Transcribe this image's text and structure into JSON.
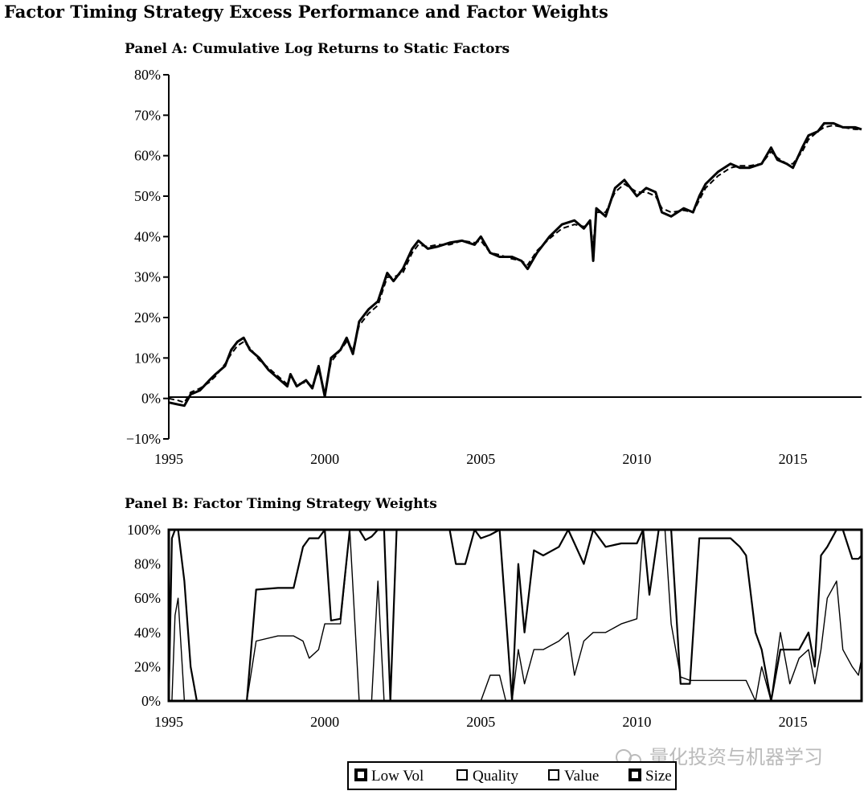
{
  "title": "Factor Timing Strategy Excess Performance and Factor Weights",
  "watermark": "量化投资与机器学习",
  "chart_data": [
    {
      "type": "line",
      "title": "Panel A: Cumulative Log Returns to Static Factors",
      "xlim": [
        1995,
        2017.2
      ],
      "ylim": [
        -10,
        80
      ],
      "x_ticks": [
        "1995",
        "2000",
        "2005",
        "2010",
        "2015"
      ],
      "y_ticks": [
        "80%",
        "70%",
        "60%",
        "50%",
        "40%",
        "30%",
        "20%",
        "10%",
        "0%",
        "−10%"
      ],
      "grid": false,
      "zero_line": true,
      "series": [
        {
          "style": "solid",
          "x": [
            1995.0,
            1995.3,
            1995.5,
            1995.7,
            1996.0,
            1996.3,
            1996.5,
            1996.8,
            1997.0,
            1997.2,
            1997.4,
            1997.6,
            1997.9,
            1998.2,
            1998.5,
            1998.8,
            1998.9,
            1999.1,
            1999.4,
            1999.6,
            1999.8,
            2000.0,
            2000.2,
            2000.5,
            2000.7,
            2000.9,
            2001.1,
            2001.4,
            2001.7,
            2002.0,
            2002.2,
            2002.5,
            2002.8,
            2003.0,
            2003.3,
            2003.6,
            2004.0,
            2004.4,
            2004.8,
            2005.0,
            2005.3,
            2005.6,
            2006.0,
            2006.3,
            2006.5,
            2006.8,
            2007.2,
            2007.6,
            2008.0,
            2008.3,
            2008.5,
            2008.6,
            2008.7,
            2009.0,
            2009.3,
            2009.6,
            2010.0,
            2010.3,
            2010.6,
            2010.8,
            2011.1,
            2011.5,
            2011.8,
            2012.0,
            2012.2,
            2012.6,
            2013.0,
            2013.3,
            2013.6,
            2014.0,
            2014.3,
            2014.5,
            2014.8,
            2015.0,
            2015.3,
            2015.5,
            2015.8,
            2016.0,
            2016.3,
            2016.6,
            2017.0,
            2017.2
          ],
          "values": [
            -1,
            -1.5,
            -1.8,
            1,
            2,
            4.5,
            6,
            8,
            12,
            14,
            15,
            12,
            10,
            7,
            5,
            3,
            6,
            3,
            4.5,
            2.5,
            8,
            0.5,
            10,
            12,
            15,
            11,
            19,
            22,
            24,
            31,
            29,
            32,
            37,
            39,
            37,
            37.5,
            38.5,
            39,
            38,
            40,
            36,
            35,
            35,
            34,
            32,
            36,
            40,
            43,
            44,
            42,
            44,
            34,
            47,
            45,
            52,
            54,
            50,
            52,
            51,
            46,
            45,
            47,
            46,
            50,
            53,
            56,
            58,
            57,
            57,
            58,
            62,
            59,
            58,
            57,
            62,
            65,
            66,
            68,
            68,
            67,
            67,
            66.5
          ]
        },
        {
          "style": "dashed",
          "x": [
            1995.0,
            1995.3,
            1995.5,
            1995.7,
            1996.0,
            1996.3,
            1996.5,
            1996.8,
            1997.0,
            1997.2,
            1997.4,
            1997.6,
            1997.9,
            1998.2,
            1998.5,
            1998.8,
            1998.9,
            1999.1,
            1999.4,
            1999.6,
            1999.8,
            2000.0,
            2000.2,
            2000.5,
            2000.7,
            2000.9,
            2001.1,
            2001.4,
            2001.7,
            2002.0,
            2002.2,
            2002.5,
            2002.8,
            2003.0,
            2003.3,
            2003.6,
            2004.0,
            2004.4,
            2004.8,
            2005.0,
            2005.3,
            2005.6,
            2006.0,
            2006.3,
            2006.5,
            2006.8,
            2007.2,
            2007.6,
            2008.0,
            2008.3,
            2008.5,
            2008.6,
            2008.7,
            2009.0,
            2009.3,
            2009.6,
            2010.0,
            2010.3,
            2010.6,
            2010.8,
            2011.1,
            2011.5,
            2011.8,
            2012.0,
            2012.2,
            2012.6,
            2013.0,
            2013.3,
            2013.6,
            2014.0,
            2014.3,
            2014.5,
            2014.8,
            2015.0,
            2015.3,
            2015.5,
            2015.8,
            2016.0,
            2016.3,
            2016.6,
            2017.0,
            2017.2
          ],
          "values": [
            0,
            -0.5,
            -1,
            1.5,
            2.5,
            4,
            5.5,
            8.5,
            11,
            13,
            14,
            12.5,
            9.5,
            7.5,
            5.5,
            3.5,
            5.5,
            3.5,
            4,
            3,
            7,
            1.5,
            9,
            12,
            14,
            12,
            18,
            21,
            23,
            30,
            30,
            31,
            36,
            38,
            37.5,
            38,
            38,
            39,
            38.5,
            39,
            36,
            35.5,
            34.5,
            34,
            33,
            36.5,
            39.5,
            42,
            43,
            42.5,
            43,
            38,
            46,
            46,
            51,
            53,
            51,
            51,
            50,
            47,
            46,
            46.5,
            46,
            49,
            52,
            55,
            57,
            57.5,
            57.5,
            58,
            61,
            59.5,
            58,
            58,
            61,
            64,
            66,
            67,
            67.5,
            67,
            66.5,
            66.5
          ]
        }
      ]
    },
    {
      "type": "area",
      "stacked": true,
      "title": "Panel B: Factor Timing Strategy Weights",
      "xlim": [
        1995,
        2017.2
      ],
      "ylim": [
        0,
        100
      ],
      "x_ticks": [
        "1995",
        "2000",
        "2005",
        "2010",
        "2015"
      ],
      "y_ticks": [
        "100%",
        "80%",
        "60%",
        "40%",
        "20%",
        "0%"
      ],
      "legend_position": "bottom",
      "legend": [
        "Low Vol",
        "Quality",
        "Value",
        "Size"
      ],
      "boundary_x": [
        1995.0,
        1995.1,
        1995.2,
        1995.3,
        1995.5,
        1995.7,
        1995.9,
        1996.0,
        1997.0,
        1997.5,
        1997.8,
        1998.5,
        1999.0,
        1999.3,
        1999.5,
        1999.8,
        2000.0,
        2000.2,
        2000.5,
        2000.8,
        2001.1,
        2001.3,
        2001.5,
        2001.7,
        2001.9,
        2002.1,
        2002.3,
        2002.5,
        2002.7,
        2002.9,
        2003.1,
        2003.5,
        2004.0,
        2004.2,
        2004.5,
        2004.8,
        2005.0,
        2005.3,
        2005.6,
        2005.8,
        2006.0,
        2006.2,
        2006.4,
        2006.7,
        2007.0,
        2007.5,
        2007.8,
        2008.0,
        2008.3,
        2008.6,
        2009.0,
        2009.5,
        2010.0,
        2010.2,
        2010.4,
        2010.7,
        2010.9,
        2011.1,
        2011.4,
        2011.7,
        2012.0,
        2012.5,
        2013.0,
        2013.3,
        2013.5,
        2013.8,
        2014.0,
        2014.3,
        2014.6,
        2014.9,
        2015.2,
        2015.5,
        2015.7,
        2015.9,
        2016.1,
        2016.4,
        2016.6,
        2016.9,
        2017.1,
        2017.2
      ],
      "boundary_upper": [
        0,
        95,
        100,
        100,
        70,
        20,
        0,
        0,
        0,
        0,
        65,
        66,
        66,
        90,
        95,
        95,
        100,
        47,
        48,
        100,
        100,
        94,
        96,
        100,
        100,
        0,
        100,
        100,
        100,
        100,
        100,
        100,
        100,
        80,
        80,
        100,
        95,
        97,
        100,
        50,
        0,
        80,
        40,
        88,
        85,
        90,
        100,
        92,
        80,
        100,
        90,
        92,
        92,
        100,
        62,
        100,
        100,
        100,
        10,
        10,
        95,
        95,
        95,
        90,
        85,
        40,
        30,
        0,
        30,
        30,
        30,
        40,
        20,
        85,
        90,
        100,
        100,
        83,
        83,
        85
      ],
      "boundary_lower": [
        0,
        0,
        50,
        60,
        0,
        0,
        0,
        0,
        0,
        0,
        35,
        38,
        38,
        35,
        25,
        30,
        45,
        45,
        45,
        100,
        0,
        0,
        0,
        70,
        0,
        0,
        0,
        0,
        0,
        0,
        0,
        0,
        0,
        0,
        0,
        0,
        0,
        15,
        15,
        0,
        0,
        30,
        10,
        30,
        30,
        35,
        40,
        15,
        35,
        40,
        40,
        45,
        48,
        100,
        62,
        100,
        100,
        45,
        14,
        12,
        12,
        12,
        12,
        12,
        12,
        0,
        20,
        0,
        40,
        10,
        25,
        30,
        10,
        30,
        60,
        70,
        30,
        20,
        15,
        25
      ]
    }
  ]
}
